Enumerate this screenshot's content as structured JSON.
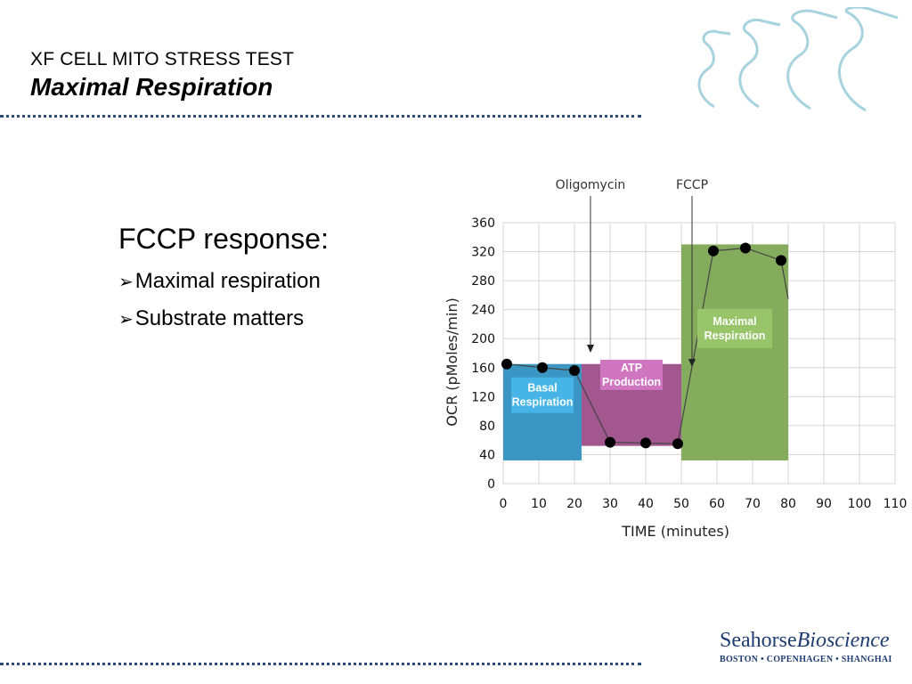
{
  "header": {
    "subtitle": "XF CELL MITO STRESS TEST",
    "title": "Maximal Respiration"
  },
  "content": {
    "heading": "FCCP response:",
    "bullets": [
      "Maximal respiration",
      "Substrate matters"
    ],
    "bullet_icon": "arrow-bullet-icon"
  },
  "brand": {
    "name_part1": "Seahorse",
    "name_part2": "Bioscience",
    "locations": "BOSTON • COPENHAGEN • SHANGHAI",
    "logo_icon": "seahorse-icon",
    "color": "#1f3d73"
  },
  "chart_data": {
    "type": "line",
    "xlabel": "TIME (minutes)",
    "ylabel": "OCR (pMoles/min)",
    "xlim": [
      0,
      110
    ],
    "ylim": [
      0,
      360
    ],
    "xticks": [
      0,
      10,
      20,
      30,
      40,
      50,
      60,
      70,
      80,
      90,
      100,
      110
    ],
    "yticks": [
      0,
      40,
      80,
      120,
      160,
      200,
      240,
      280,
      320,
      360
    ],
    "series": [
      {
        "x": [
          1,
          11,
          20,
          30,
          40,
          49,
          59,
          68,
          78,
          80
        ],
        "y": [
          165,
          160,
          156,
          57,
          56,
          55,
          321,
          325,
          308,
          255
        ],
        "markers": [
          true,
          true,
          true,
          true,
          true,
          true,
          true,
          true,
          true,
          false
        ]
      }
    ],
    "regions": [
      {
        "label": "Basal Respiration",
        "x": [
          0,
          22
        ],
        "y": [
          32,
          165
        ],
        "fill": "#3b96c4",
        "label_fill": "#46b4e6"
      },
      {
        "label": "ATP Production",
        "x": [
          22,
          50
        ],
        "y": [
          52,
          165
        ],
        "fill": "#a3578f",
        "label_fill": "#d075bf"
      },
      {
        "label": "Maximal Respiration",
        "x": [
          50,
          80
        ],
        "y": [
          32,
          330
        ],
        "fill": "#84ac5c",
        "label_fill": "#98c46a"
      }
    ],
    "annotations": [
      {
        "text": "Oligomycin",
        "x": 24.5
      },
      {
        "text": "FCCP",
        "x": 53
      }
    ],
    "grid": true
  }
}
